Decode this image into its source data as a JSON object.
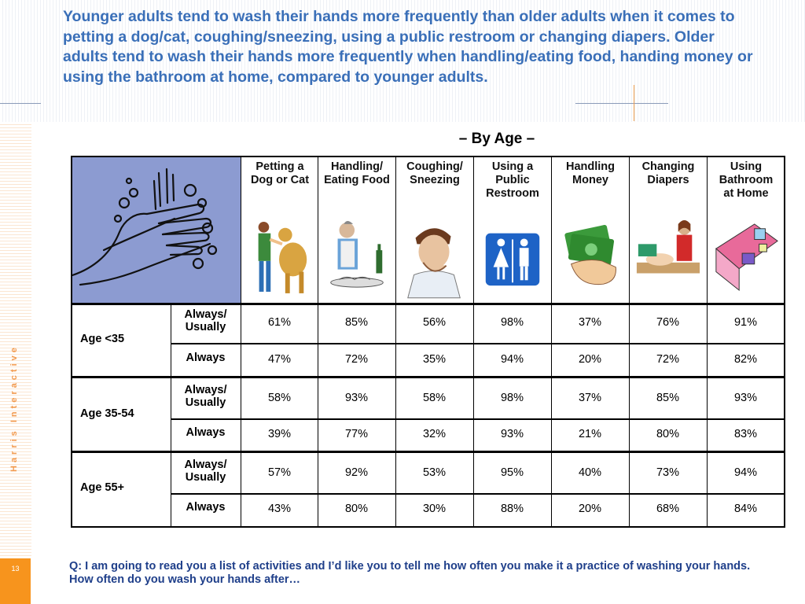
{
  "headline": "Younger adults tend to wash their hands more frequently than older adults when it comes to petting a dog/cat, coughing/sneezing, using a public restroom or changing diapers.  Older adults tend to wash their hands more frequently when handling/eating food, handing money or using the bathroom at home, compared to younger adults.",
  "subtitle": "– By Age –",
  "brand": "Harris Interactive",
  "page_number": "13",
  "columns": [
    {
      "label_lines": [
        "Petting a",
        "Dog or Cat"
      ],
      "icon": "dog-petting-icon"
    },
    {
      "label_lines": [
        "Handling/",
        "Eating Food"
      ],
      "icon": "food-handling-icon"
    },
    {
      "label_lines": [
        "Coughing/",
        "Sneezing"
      ],
      "icon": "coughing-man-icon"
    },
    {
      "label_lines": [
        "Using a",
        "Public",
        "Restroom"
      ],
      "icon": "restroom-sign-icon"
    },
    {
      "label_lines": [
        "Handling",
        "Money"
      ],
      "icon": "money-in-hand-icon"
    },
    {
      "label_lines": [
        "Changing",
        "Diapers"
      ],
      "icon": "diaper-changing-icon"
    },
    {
      "label_lines": [
        "Using",
        "Bathroom",
        "at Home"
      ],
      "icon": "home-bathroom-icon"
    }
  ],
  "groups": [
    {
      "age": "Age <35",
      "rows": [
        {
          "freq_lines": [
            "Always/",
            "Usually"
          ],
          "values": [
            "61%",
            "85%",
            "56%",
            "98%",
            "37%",
            "76%",
            "91%"
          ]
        },
        {
          "freq_lines": [
            "Always"
          ],
          "values": [
            "47%",
            "72%",
            "35%",
            "94%",
            "20%",
            "72%",
            "82%"
          ]
        }
      ]
    },
    {
      "age": "Age 35-54",
      "rows": [
        {
          "freq_lines": [
            "Always/",
            "Usually"
          ],
          "values": [
            "58%",
            "93%",
            "58%",
            "98%",
            "37%",
            "85%",
            "93%"
          ]
        },
        {
          "freq_lines": [
            "Always"
          ],
          "values": [
            "39%",
            "77%",
            "32%",
            "93%",
            "21%",
            "80%",
            "83%"
          ]
        }
      ]
    },
    {
      "age": "Age 55+",
      "rows": [
        {
          "freq_lines": [
            "Always/",
            "Usually"
          ],
          "values": [
            "57%",
            "92%",
            "53%",
            "95%",
            "40%",
            "73%",
            "94%"
          ]
        },
        {
          "freq_lines": [
            "Always"
          ],
          "values": [
            "43%",
            "80%",
            "30%",
            "88%",
            "20%",
            "68%",
            "84%"
          ]
        }
      ]
    }
  ],
  "footnote": "Q: I am going to read you a list of activities and I’d like you to tell me how often you make it a practice of washing your hands. How often do you wash your hands after…",
  "colors": {
    "headline": "#3a6fb8",
    "hands_bg": "#8c9bd1",
    "sidebar_accent": "#f7941d",
    "footnote": "#1f3f8a"
  }
}
